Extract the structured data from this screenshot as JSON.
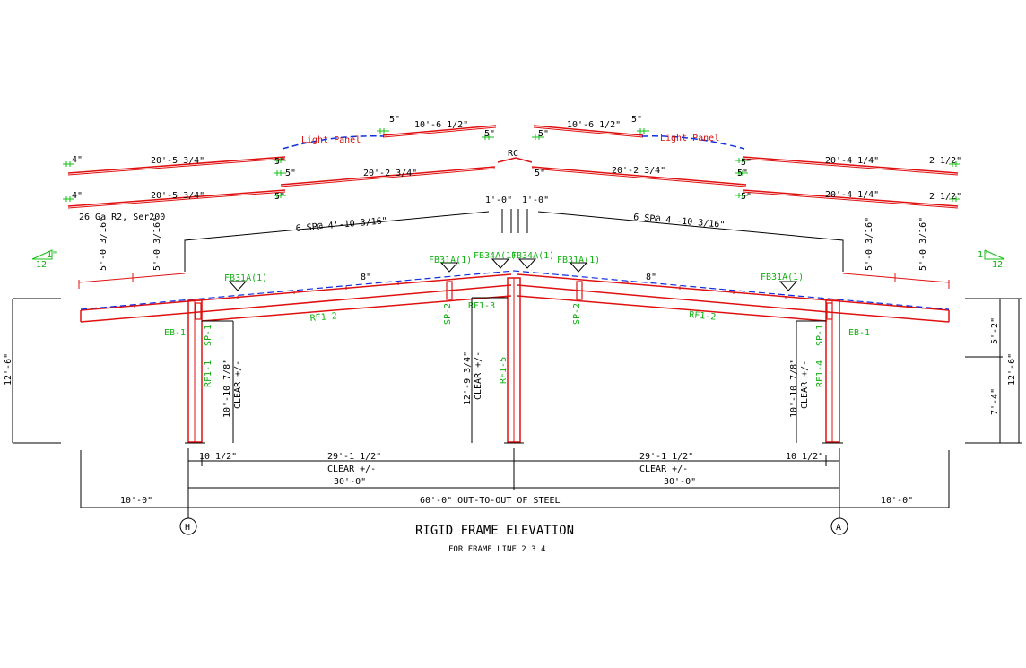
{
  "title": "RIGID FRAME ELEVATION",
  "subtitle": "FOR FRAME LINE 2  3  4",
  "grid_lines": {
    "left": "H",
    "right": "A"
  },
  "panels": {
    "top_left_len": "10'-6 1/2\"",
    "top_right_len": "10'-6 1/2\"",
    "top_left_lap": "5\"",
    "top_right_lap": "5\"",
    "light_panel_label": "Light Panel",
    "ridge_cap": "RC",
    "row1_left_end": "4\"",
    "row1_left_len": "20'-5 3/4\"",
    "row1_left_lap": "5\"",
    "row1_left_mid_len": "20'-2 3/4\"",
    "row1_right_mid_len": "20'-2 3/4\"",
    "row1_right_len": "20'-4 1/4\"",
    "row1_right_end": "2 1/2\"",
    "row2_left_end": "4\"",
    "row2_left_len": "20'-5 3/4\"",
    "row2_left_lap": "5\"",
    "row2_right_len": "20'-4 1/4\"",
    "row2_right_end": "2 1/2\"",
    "gauge_note": "26 Ga  R2, Ser200",
    "ridge_left": "1'-0\"",
    "ridge_right": "1'-0\""
  },
  "purlin_spacing": {
    "left": "6  SP@ 4'-10 3/16\"",
    "right": "6  SP@ 4'-10 3/16\""
  },
  "eave_dims": {
    "a": "5'-0 3/16\"",
    "b": "5'-0 3/16\""
  },
  "slope": {
    "rise": "1\"",
    "run": "12"
  },
  "marks": {
    "fb31a": "FB31A(1)",
    "fb34a_l": "FB34A(1)",
    "fb34a_r": "FB34A(1)",
    "rf1_1": "RF1-1",
    "rf1_2": "RF1-2",
    "rf1_3": "RF1-3",
    "rf1_4": "RF1-4",
    "rf1_5": "RF1-5",
    "sp1": "SP-1",
    "sp2": "SP-2",
    "eb1": "EB-1",
    "eight": "8\""
  },
  "heights": {
    "left_eave": "12'-6\"",
    "right_eave": "12'-6\"",
    "right_upper": "5'-2\"",
    "right_lower": "7'-4\"",
    "clear_left": "10'-10 7/8\"",
    "clear_right": "10'-10 7/8\"",
    "clear_center": "12'-9 3/4\"",
    "clear_label": "CLEAR +/-"
  },
  "spans": {
    "col_offset": "10 1/2\"",
    "clear_span": "29'-1 1/2\"",
    "clear_label": "CLEAR +/-",
    "bay": "30'-0\"",
    "overall": "60'-0\" OUT-TO-OUT OF STEEL",
    "overhang": "10'-0\""
  }
}
